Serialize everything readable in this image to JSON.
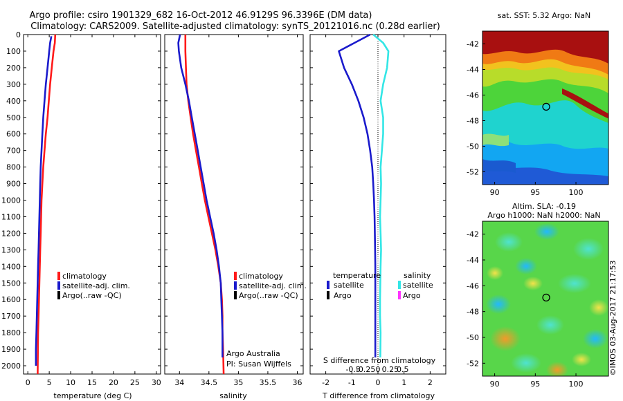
{
  "header": {
    "line1": "Argo profile: csiro 1901329_682 16-Oct-2012 46.9129S 96.3396E (DM data)",
    "line2": "Climatology: CARS2009. Satellite-adjusted climatology: synTS_20121016.nc (0.28d earlier)"
  },
  "watermark": "©IMOS 03-Aug-2017 21:17:53",
  "colors": {
    "climatology": "#ff1a1a",
    "satellite_clim": "#1a1acc",
    "argo": "#000000",
    "satellite_salinity": "#33e6e6",
    "argo_salinity": "#ff33ff"
  },
  "chart_data": [
    {
      "type": "line",
      "id": "temperature",
      "xlabel": "temperature (deg C)",
      "ylabel": "",
      "xlim": [
        -1,
        31
      ],
      "ylim": [
        2050,
        0
      ],
      "xticks": [
        0,
        5,
        10,
        15,
        20,
        25,
        30
      ],
      "yticks": [
        0,
        100,
        200,
        300,
        400,
        500,
        600,
        700,
        800,
        900,
        1000,
        1100,
        1200,
        1300,
        1400,
        1500,
        1600,
        1700,
        1800,
        1900,
        2000
      ],
      "legend": [
        "climatology",
        "satellite-adj. clim.",
        "Argo(..raw -QC)"
      ],
      "series": [
        {
          "name": "climatology",
          "color": "#ff1a1a",
          "x": [
            6.4,
            6.3,
            6.0,
            5.6,
            5.2,
            4.9,
            4.6,
            4.2,
            3.9,
            3.6,
            3.4,
            3.2,
            3.1,
            3.0,
            2.9,
            2.8,
            2.7,
            2.6,
            2.5,
            2.4,
            2.3
          ],
          "y": [
            0,
            50,
            100,
            200,
            300,
            400,
            500,
            600,
            700,
            800,
            900,
            1000,
            1100,
            1200,
            1300,
            1400,
            1500,
            1600,
            1700,
            1800,
            2050
          ]
        },
        {
          "name": "satellite-adj. clim.",
          "color": "#1a1acc",
          "x": [
            5.5,
            5.2,
            5.0,
            4.6,
            4.2,
            3.9,
            3.6,
            3.4,
            3.2,
            3.0,
            2.9,
            2.8,
            2.7,
            2.6,
            2.5,
            2.4,
            2.3,
            2.2,
            2.1,
            2.0,
            1.9,
            1.9
          ],
          "y": [
            10,
            50,
            100,
            200,
            300,
            400,
            500,
            600,
            700,
            800,
            900,
            1000,
            1100,
            1200,
            1300,
            1400,
            1500,
            1600,
            1700,
            1800,
            1900,
            2000
          ]
        }
      ]
    },
    {
      "type": "line",
      "id": "salinity",
      "xlabel": "salinity",
      "ylabel": "",
      "xlim": [
        33.75,
        36.1
      ],
      "ylim": [
        2050,
        0
      ],
      "xticks": [
        34,
        34.5,
        35,
        35.5,
        36
      ],
      "xticklabels": [
        "34",
        "34.5",
        "35",
        "35.5",
        "36"
      ],
      "legend": [
        "climatology",
        "satellite-adj. clim.",
        "Argo(..raw -QC)"
      ],
      "annotation": [
        "Argo Australia",
        "PI: Susan Wijffels"
      ],
      "series": [
        {
          "name": "climatology",
          "color": "#ff1a1a",
          "x": [
            34.1,
            34.1,
            34.1,
            34.11,
            34.12,
            34.15,
            34.19,
            34.23,
            34.28,
            34.33,
            34.38,
            34.43,
            34.49,
            34.55,
            34.61,
            34.66,
            34.7,
            34.72,
            34.73,
            34.73,
            34.74,
            34.75
          ],
          "y": [
            0,
            50,
            100,
            200,
            300,
            400,
            500,
            600,
            700,
            800,
            900,
            1000,
            1100,
            1200,
            1300,
            1400,
            1500,
            1600,
            1700,
            1800,
            1900,
            2050
          ]
        },
        {
          "name": "satellite-adj. clim.",
          "color": "#1a1acc",
          "x": [
            34.01,
            33.98,
            33.99,
            34.03,
            34.1,
            34.16,
            34.21,
            34.26,
            34.31,
            34.36,
            34.41,
            34.46,
            34.52,
            34.58,
            34.63,
            34.67,
            34.7,
            34.71,
            34.72,
            34.73,
            34.73
          ],
          "y": [
            0,
            50,
            100,
            200,
            300,
            400,
            500,
            600,
            700,
            800,
            900,
            1000,
            1100,
            1200,
            1300,
            1400,
            1500,
            1600,
            1700,
            1800,
            1950
          ]
        }
      ]
    },
    {
      "type": "line",
      "id": "difference",
      "xlabel": "T difference from climatology",
      "xlabel_top": "S difference from climatology",
      "xlim": [
        -2.6,
        2.6
      ],
      "ylim": [
        2050,
        0
      ],
      "xticks": [
        -2,
        -1,
        0,
        1,
        2
      ],
      "xticks_top": [
        -0.5,
        -0.25,
        0,
        0.25,
        0.5
      ],
      "xticklabels_top": [
        "-0.5",
        "-0.25",
        "0",
        "0.25",
        "0.5"
      ],
      "legend_titles": [
        "temperature",
        "salinity"
      ],
      "legend": [
        "satellite",
        "Argo",
        "satellite",
        "Argo"
      ],
      "series": [
        {
          "name": "satellite",
          "group": "temperature",
          "color": "#1a1acc",
          "x": [
            -0.3,
            -0.9,
            -1.5,
            -1.3,
            -1.0,
            -0.75,
            -0.55,
            -0.4,
            -0.3,
            -0.22,
            -0.18,
            -0.15,
            -0.13,
            -0.12,
            -0.11,
            -0.1,
            -0.1,
            -0.1,
            -0.1,
            -0.1,
            -0.1
          ],
          "y": [
            0,
            50,
            100,
            200,
            300,
            400,
            500,
            600,
            700,
            800,
            900,
            1000,
            1100,
            1200,
            1300,
            1400,
            1500,
            1600,
            1700,
            1800,
            1950
          ]
        },
        {
          "name": "satellite",
          "group": "salinity",
          "color": "#33e6e6",
          "x": [
            -0.18,
            0.2,
            0.4,
            0.35,
            0.2,
            0.1,
            0.2,
            0.2,
            0.15,
            0.1,
            0.12,
            0.1,
            0.08,
            0.1,
            0.12,
            0.1,
            0.09,
            0.08,
            0.08,
            0.1,
            0.09
          ],
          "y": [
            0,
            50,
            100,
            200,
            300,
            400,
            500,
            600,
            700,
            800,
            900,
            1000,
            1100,
            1200,
            1300,
            1400,
            1500,
            1600,
            1700,
            1800,
            1950
          ]
        }
      ]
    },
    {
      "type": "heatmap",
      "id": "sst-map",
      "title": "sat. SST: 5.32 Argo: NaN",
      "xlim": [
        88.5,
        104
      ],
      "ylim": [
        -53,
        -41
      ],
      "xticks": [
        90,
        95,
        100
      ],
      "yticks": [
        -42,
        -44,
        -46,
        -48,
        -50,
        -52
      ],
      "marker": {
        "lon": 96.3396,
        "lat": -46.9129
      }
    },
    {
      "type": "heatmap",
      "id": "sla-map",
      "title": "Altim. SLA: -0.19",
      "subtitle": "Argo h1000: NaN h2000: NaN",
      "xlim": [
        88.5,
        104
      ],
      "ylim": [
        -53,
        -41
      ],
      "xticks": [
        90,
        95,
        100
      ],
      "yticks": [
        -42,
        -44,
        -46,
        -48,
        -50,
        -52
      ],
      "marker": {
        "lon": 96.3396,
        "lat": -46.9129
      }
    }
  ]
}
